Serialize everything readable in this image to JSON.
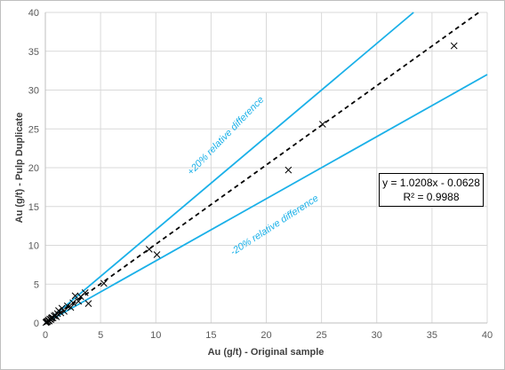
{
  "chart_data": {
    "type": "scatter",
    "title": "",
    "xlabel": "Au (g/t) - Original sample",
    "ylabel": "Au (g/t) - Pulp Duplicate",
    "xlim": [
      0,
      40
    ],
    "ylim": [
      0,
      40
    ],
    "x_ticks": [
      "0",
      "5",
      "10",
      "15",
      "20",
      "25",
      "30",
      "35",
      "40"
    ],
    "y_ticks": [
      "0",
      "5",
      "10",
      "15",
      "20",
      "25",
      "30",
      "35",
      "40"
    ],
    "grid": true,
    "series": [
      {
        "marker": "x",
        "color": "#000000",
        "points": [
          [
            0.05,
            0.05
          ],
          [
            0.1,
            0.12
          ],
          [
            0.15,
            0.2
          ],
          [
            0.2,
            0.15
          ],
          [
            0.25,
            0.3
          ],
          [
            0.3,
            0.35
          ],
          [
            0.35,
            0.25
          ],
          [
            0.4,
            0.5
          ],
          [
            0.5,
            0.45
          ],
          [
            0.55,
            0.6
          ],
          [
            0.6,
            0.7
          ],
          [
            0.7,
            0.65
          ],
          [
            0.8,
            0.9
          ],
          [
            0.9,
            1.0
          ],
          [
            1.0,
            0.8
          ],
          [
            1.1,
            1.2
          ],
          [
            1.2,
            1.6
          ],
          [
            1.4,
            1.3
          ],
          [
            1.5,
            1.9
          ],
          [
            1.7,
            1.5
          ],
          [
            2.0,
            2.2
          ],
          [
            2.3,
            2.0
          ],
          [
            2.5,
            2.6
          ],
          [
            2.7,
            3.5
          ],
          [
            3.0,
            2.8
          ],
          [
            3.2,
            3.4
          ],
          [
            3.6,
            3.9
          ],
          [
            3.9,
            2.5
          ],
          [
            5.3,
            5.1
          ],
          [
            9.4,
            9.5
          ],
          [
            10.1,
            8.8
          ],
          [
            22.0,
            19.7
          ],
          [
            25.1,
            25.6
          ],
          [
            37.0,
            35.7
          ]
        ]
      }
    ],
    "lines": [
      {
        "kind": "trendline",
        "slope": 1.0208,
        "intercept": -0.0628,
        "style": "dashed",
        "color": "#000000"
      },
      {
        "kind": "upper",
        "slope": 1.2,
        "intercept": 0,
        "style": "solid",
        "color": "#1ab0e8"
      },
      {
        "kind": "lower",
        "slope": 0.8,
        "intercept": 0,
        "style": "solid",
        "color": "#1ab0e8"
      }
    ],
    "annotations": {
      "upper_label": "+20% relative difference",
      "lower_label": "-20% relative difference",
      "equation": "y = 1.0208x - 0.0628",
      "r_squared": "R² = 0.9988"
    }
  }
}
